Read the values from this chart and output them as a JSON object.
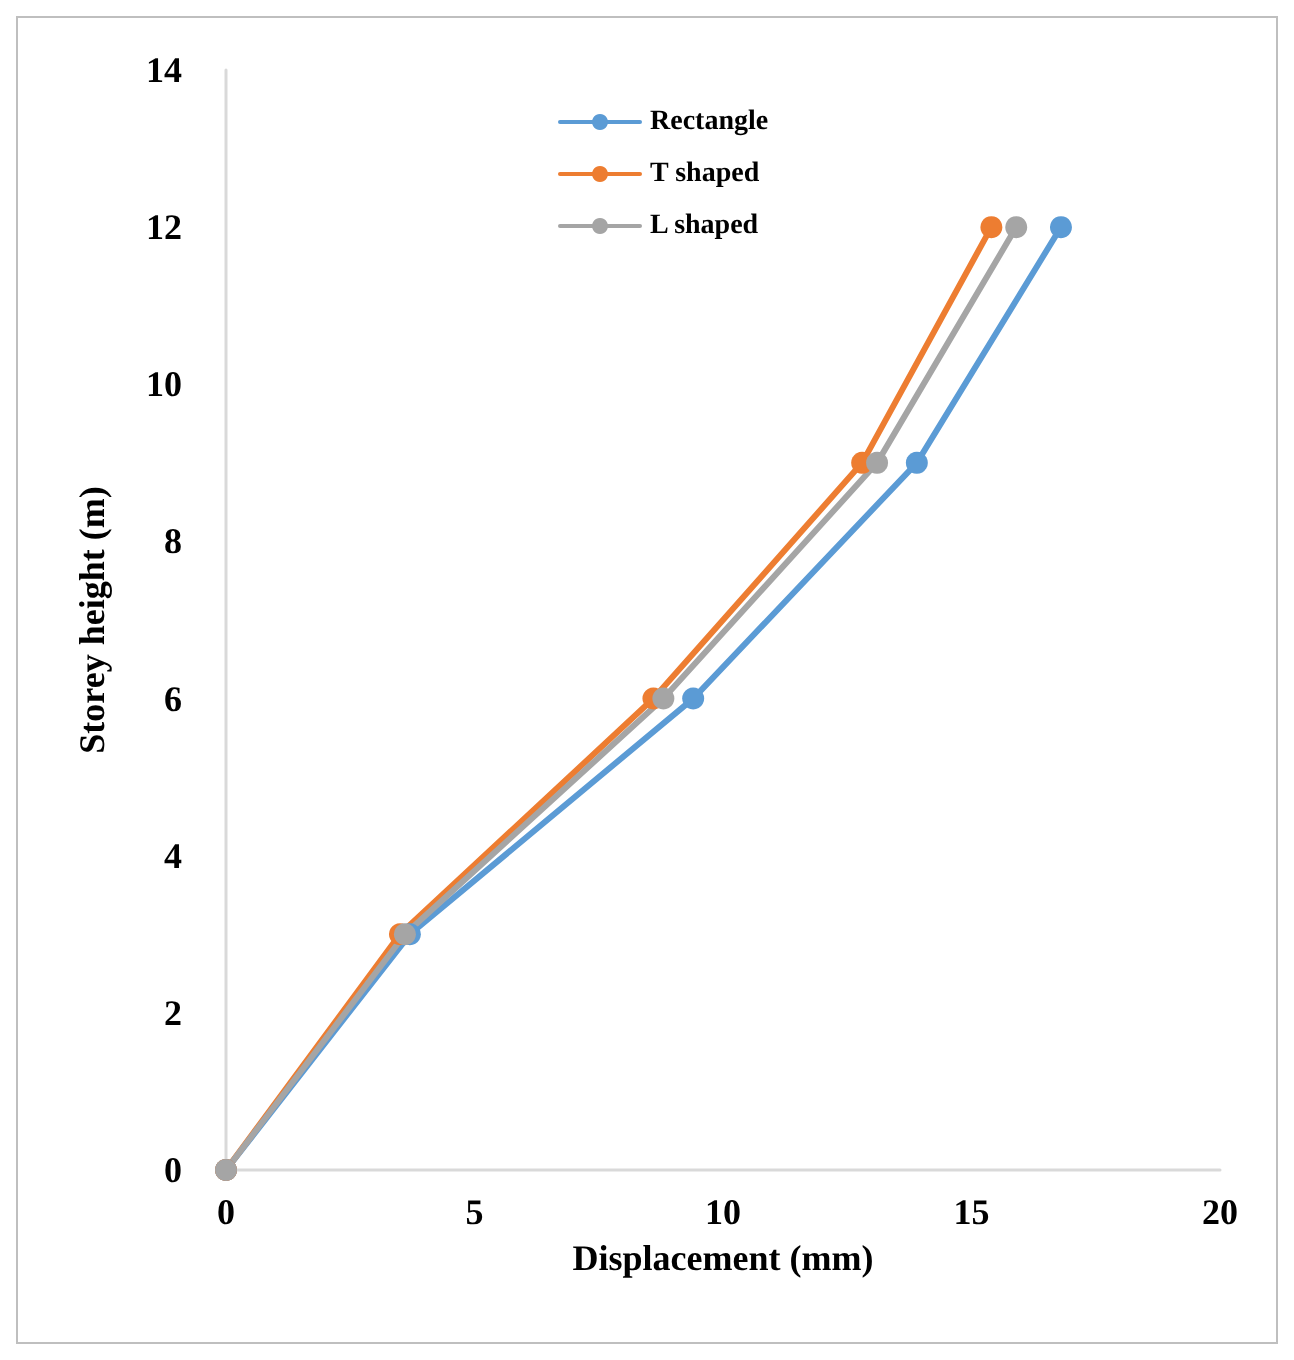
{
  "chart_data": {
    "type": "line",
    "xlabel": "Displacement (mm)",
    "ylabel": "Storey height (m)",
    "xlim": [
      0,
      20
    ],
    "xticks": [
      0,
      5,
      10,
      15,
      20
    ],
    "ylim": [
      0,
      14
    ],
    "yticks": [
      0,
      2,
      4,
      6,
      8,
      10,
      12,
      14
    ],
    "grid": false,
    "legend": "top",
    "marker": "circle",
    "line_style": "solid",
    "series": [
      {
        "name": "Rectangle",
        "color": "#5b9bd5",
        "x": [
          0,
          3.7,
          9.4,
          13.9,
          16.8
        ],
        "values": [
          0,
          3,
          6,
          9,
          12
        ]
      },
      {
        "name": "T shaped",
        "color": "#ed7d31",
        "x": [
          0,
          3.5,
          8.6,
          12.8,
          15.4
        ],
        "values": [
          0,
          3,
          6,
          9,
          12
        ]
      },
      {
        "name": "L shaped",
        "color": "#a5a5a5",
        "x": [
          0,
          3.6,
          8.8,
          13.1,
          15.9
        ],
        "values": [
          0,
          3,
          6,
          9,
          12
        ]
      }
    ]
  }
}
